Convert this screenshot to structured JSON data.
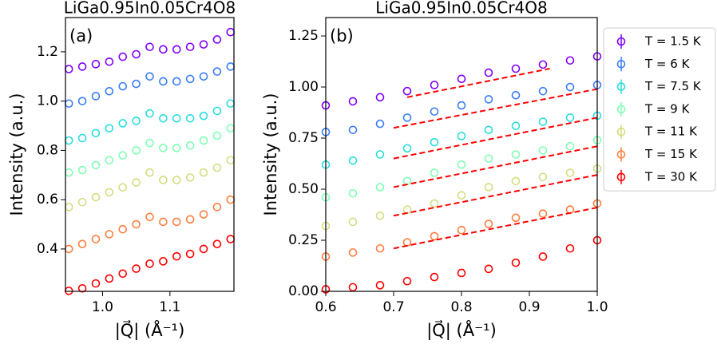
{
  "chart_data": [
    {
      "type": "scatter",
      "title": "LiGa0.95In0.05Cr4O8",
      "panel_label": "(a)",
      "xlabel": "|Q⃗| (Å⁻¹)",
      "ylabel": "Intensity (a.u.)",
      "xlim": [
        0.945,
        1.195
      ],
      "ylim": [
        0.228,
        1.339
      ],
      "xticks": [
        {
          "value": 1.0,
          "label": "1.0"
        },
        1.1
      ],
      "yticks": [
        0.4,
        0.6,
        0.8,
        {
          "value": 1.0,
          "label": "1.0"
        },
        1.2
      ],
      "x": [
        0.95,
        0.97,
        0.99,
        1.01,
        1.03,
        1.05,
        1.07,
        1.09,
        1.11,
        1.13,
        1.15,
        1.17,
        1.19
      ],
      "series": [
        {
          "color": "#8000ff",
          "values": [
            1.13,
            1.14,
            1.15,
            1.16,
            1.18,
            1.19,
            1.22,
            1.21,
            1.21,
            1.22,
            1.23,
            1.25,
            1.28
          ]
        },
        {
          "color": "#3a7df5",
          "values": [
            0.99,
            1.0,
            1.02,
            1.04,
            1.06,
            1.07,
            1.1,
            1.08,
            1.08,
            1.09,
            1.1,
            1.12,
            1.14
          ]
        },
        {
          "color": "#2adddd",
          "values": [
            0.84,
            0.85,
            0.87,
            0.89,
            0.91,
            0.92,
            0.95,
            0.93,
            0.93,
            0.93,
            0.94,
            0.96,
            0.99
          ]
        },
        {
          "color": "#80ffb4",
          "values": [
            0.71,
            0.72,
            0.74,
            0.76,
            0.78,
            0.8,
            0.83,
            0.81,
            0.81,
            0.82,
            0.84,
            0.86,
            0.89
          ]
        },
        {
          "color": "#d4dd80",
          "values": [
            0.57,
            0.59,
            0.61,
            0.63,
            0.65,
            0.67,
            0.71,
            0.68,
            0.68,
            0.69,
            0.71,
            0.73,
            0.76
          ]
        },
        {
          "color": "#ff7e41",
          "values": [
            0.4,
            0.42,
            0.44,
            0.46,
            0.48,
            0.5,
            0.53,
            0.51,
            0.51,
            0.52,
            0.54,
            0.57,
            0.6
          ]
        },
        {
          "color": "#ff0000",
          "values": [
            0.23,
            0.24,
            0.26,
            0.28,
            0.3,
            0.32,
            0.34,
            0.35,
            0.37,
            0.38,
            0.4,
            0.42,
            0.44
          ]
        }
      ]
    },
    {
      "type": "scatter",
      "title": "LiGa0.95In0.05Cr4O8",
      "panel_label": "(b)",
      "xlabel": "|Q⃗| (Å⁻¹)",
      "ylabel": "Intensity (a.u.)",
      "xlim": [
        0.6,
        1.0
      ],
      "ylim": [
        0,
        1.34
      ],
      "xticks": [
        0.6,
        0.7,
        0.8,
        0.9,
        {
          "value": 1.0,
          "label": "1.0"
        }
      ],
      "yticks": [
        {
          "value": 0,
          "label": "0.00"
        },
        {
          "value": 0.25,
          "label": "0.25"
        },
        {
          "value": 0.5,
          "label": "0.50"
        },
        {
          "value": 0.75,
          "label": "0.75"
        },
        {
          "value": 1.0,
          "label": "1.00"
        },
        {
          "value": 1.25,
          "label": "1.25"
        }
      ],
      "legend": "outside right",
      "x": [
        0.6,
        0.64,
        0.68,
        0.72,
        0.76,
        0.8,
        0.84,
        0.88,
        0.92,
        0.96,
        1.0
      ],
      "series": [
        {
          "name": "T = 1.5 K",
          "color": "#8000ff",
          "values": [
            0.91,
            0.93,
            0.95,
            0.98,
            1.01,
            1.04,
            1.07,
            1.09,
            1.11,
            1.13,
            1.15
          ]
        },
        {
          "name": "T = 6 K",
          "color": "#3a7df5",
          "values": [
            0.78,
            0.79,
            0.82,
            0.85,
            0.88,
            0.91,
            0.94,
            0.96,
            0.98,
            1.0,
            1.01
          ]
        },
        {
          "name": "T = 7.5 K",
          "color": "#2adddd",
          "values": [
            0.62,
            0.64,
            0.67,
            0.7,
            0.73,
            0.76,
            0.79,
            0.81,
            0.83,
            0.85,
            0.86
          ]
        },
        {
          "name": "T = 9 K",
          "color": "#80ffb4",
          "values": [
            0.46,
            0.48,
            0.51,
            0.54,
            0.58,
            0.62,
            0.65,
            0.67,
            0.69,
            0.71,
            0.74
          ]
        },
        {
          "name": "T = 11 K",
          "color": "#d4dd80",
          "values": [
            0.32,
            0.34,
            0.37,
            0.4,
            0.43,
            0.47,
            0.51,
            0.54,
            0.56,
            0.58,
            0.6
          ]
        },
        {
          "name": "T = 15 K",
          "color": "#ff7e41",
          "values": [
            0.17,
            0.19,
            0.21,
            0.24,
            0.27,
            0.3,
            0.33,
            0.36,
            0.38,
            0.4,
            0.43
          ]
        },
        {
          "name": "T = 30 K",
          "color": "#ff0000",
          "values": [
            0.01,
            0.02,
            0.03,
            0.05,
            0.07,
            0.09,
            0.11,
            0.14,
            0.17,
            0.21,
            0.25
          ]
        }
      ],
      "fits": [
        {
          "color": "#ff0000",
          "x": [
            0.72,
            0.93
          ],
          "values": [
            0.95,
            1.09
          ]
        },
        {
          "color": "#ff0000",
          "x": [
            0.7,
            1.0
          ],
          "values": [
            0.8,
            0.99
          ]
        },
        {
          "color": "#ff0000",
          "x": [
            0.7,
            1.0
          ],
          "values": [
            0.65,
            0.85
          ]
        },
        {
          "color": "#ff0000",
          "x": [
            0.7,
            1.0
          ],
          "values": [
            0.51,
            0.71
          ]
        },
        {
          "color": "#ff0000",
          "x": [
            0.7,
            1.0
          ],
          "values": [
            0.37,
            0.57
          ]
        },
        {
          "color": "#ff0000",
          "x": [
            0.7,
            1.0
          ],
          "values": [
            0.21,
            0.41
          ]
        }
      ]
    }
  ]
}
